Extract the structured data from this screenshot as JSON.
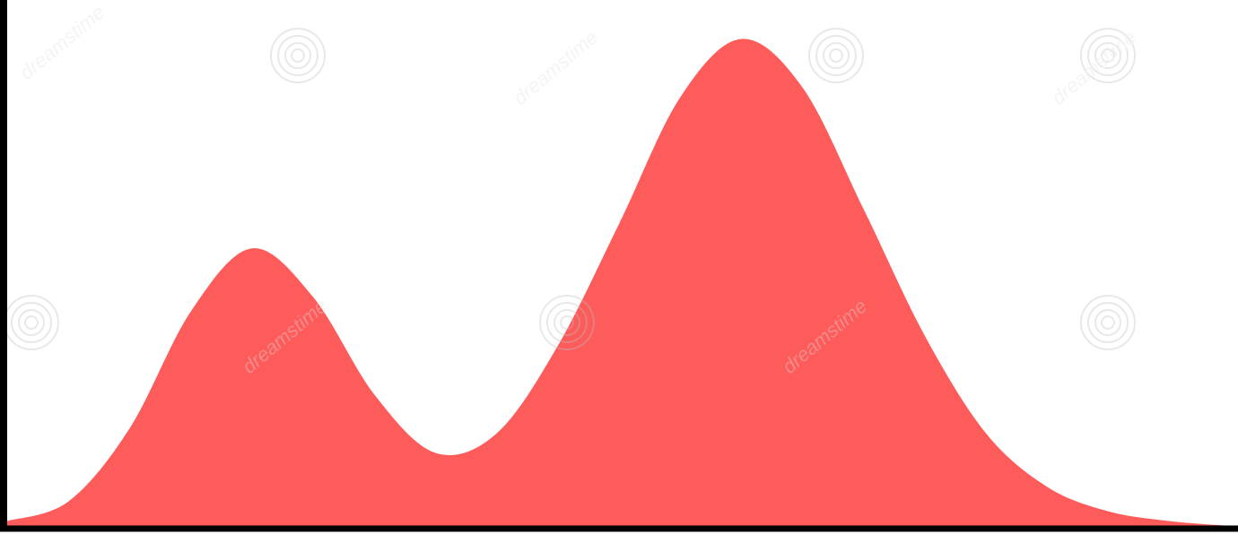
{
  "chart_data": {
    "type": "area",
    "title": "",
    "xlabel": "",
    "ylabel": "",
    "x": [
      0,
      0.05,
      0.1,
      0.15,
      0.2,
      0.25,
      0.3,
      0.35,
      0.4,
      0.45,
      0.5,
      0.55,
      0.6,
      0.65,
      0.7,
      0.75,
      0.8,
      0.85,
      0.9,
      0.95,
      1.0
    ],
    "values": [
      0.01,
      0.05,
      0.2,
      0.44,
      0.57,
      0.47,
      0.27,
      0.15,
      0.19,
      0.37,
      0.62,
      0.88,
      1.0,
      0.9,
      0.65,
      0.39,
      0.19,
      0.08,
      0.03,
      0.01,
      0.0
    ],
    "xlim": [
      0,
      1
    ],
    "ylim": [
      0,
      1.08
    ],
    "grid": false,
    "legend": "none",
    "fill_color": "#fe5b5b",
    "axis_color": "#000000"
  },
  "watermark": {
    "text": "dreamstime",
    "icon": "spiral-logo-icon"
  }
}
